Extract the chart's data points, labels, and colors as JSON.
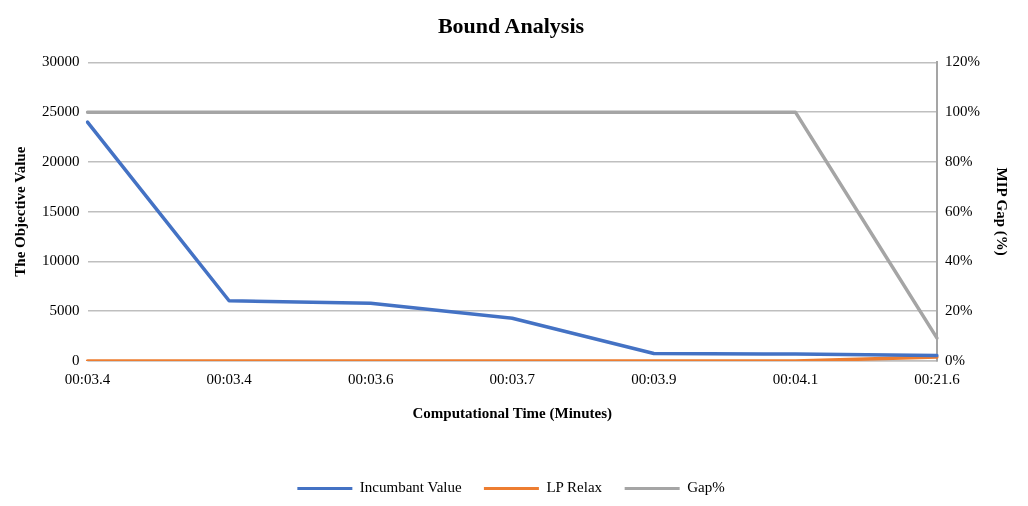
{
  "chart_data": {
    "type": "line",
    "title": "Bound Analysis",
    "xlabel": "Computational Time (Minutes)",
    "ylabel": "The Objective Value",
    "y2label": "MIP Gap (%)",
    "categories": [
      "00:03.4",
      "00:03.4",
      "00:03.6",
      "00:03.7",
      "00:03.9",
      "00:04.1",
      "00:21.6"
    ],
    "series": [
      {
        "name": "Incumbant Value",
        "color": "#4472c4",
        "values": [
          24000,
          6050,
          5800,
          4300,
          750,
          700,
          550
        ]
      },
      {
        "name": "LP Relax",
        "color": "#ed7d31",
        "values": [
          0,
          0,
          0,
          0,
          0,
          0,
          400
        ]
      },
      {
        "name": "Gap%",
        "color": "#a5a5a5",
        "axis": "y2",
        "values": [
          100,
          100,
          100,
          100,
          100,
          100,
          9.2
        ]
      }
    ],
    "ylim": [
      0,
      30000
    ],
    "yticks": [
      0,
      5000,
      10000,
      15000,
      20000,
      25000,
      30000
    ],
    "y2lim": [
      0,
      120
    ],
    "y2ticks": [
      {
        "value": 0,
        "label": "0%"
      },
      {
        "value": 20,
        "label": "20%"
      },
      {
        "value": 40,
        "label": "40%"
      },
      {
        "value": 60,
        "label": "60%"
      },
      {
        "value": 80,
        "label": "80%"
      },
      {
        "value": 100,
        "label": "100%"
      },
      {
        "value": 120,
        "label": "120%"
      }
    ],
    "grid": "y",
    "legend": "bottom",
    "marker": "none",
    "line_style": "solid"
  }
}
